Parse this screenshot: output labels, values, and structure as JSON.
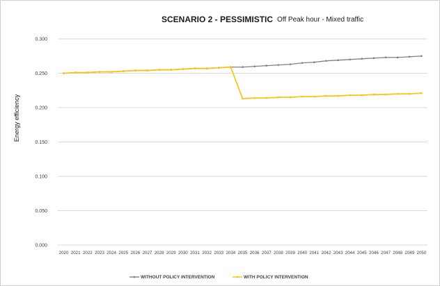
{
  "chart_data": {
    "type": "line",
    "title": "SCENARIO 2 - PESSIMISTIC",
    "subtitle": "Off Peak hour - Mixed traffic",
    "xlabel": "",
    "ylabel": "Energy efficiency",
    "ylim": [
      0,
      0.3
    ],
    "yticks": [
      "0.000",
      "0.050",
      "0.100",
      "0.150",
      "0.200",
      "0.250",
      "0.300"
    ],
    "ytick_values": [
      0,
      0.05,
      0.1,
      0.15,
      0.2,
      0.25,
      0.3
    ],
    "grid": true,
    "legend_position": "bottom",
    "categories": [
      "2020",
      "2021",
      "2022",
      "2023",
      "2024",
      "2025",
      "2026",
      "2027",
      "2028",
      "2029",
      "2030",
      "2031",
      "2032",
      "2033",
      "2034",
      "2035",
      "2036",
      "2037",
      "2038",
      "2039",
      "2040",
      "2041",
      "2042",
      "2043",
      "2044",
      "2045",
      "2046",
      "2047",
      "2048",
      "2049",
      "2050"
    ],
    "series": [
      {
        "name": "WITHOUT POLICY INTERVENTION",
        "color": "#7f7f7f",
        "values": [
          0.25,
          0.251,
          0.251,
          0.252,
          0.252,
          0.253,
          0.254,
          0.254,
          0.255,
          0.255,
          0.256,
          0.257,
          0.257,
          0.258,
          0.259,
          0.259,
          0.26,
          0.261,
          0.262,
          0.263,
          0.265,
          0.266,
          0.268,
          0.269,
          0.27,
          0.271,
          0.272,
          0.273,
          0.273,
          0.274,
          0.275
        ]
      },
      {
        "name": "WITH POLICY INTERVENTION",
        "color": "#ffc000",
        "values": [
          0.25,
          0.251,
          0.251,
          0.252,
          0.252,
          0.253,
          0.254,
          0.254,
          0.255,
          0.255,
          0.256,
          0.257,
          0.257,
          0.258,
          0.259,
          0.213,
          0.214,
          0.214,
          0.215,
          0.215,
          0.216,
          0.216,
          0.217,
          0.217,
          0.218,
          0.218,
          0.219,
          0.219,
          0.22,
          0.22,
          0.221
        ]
      }
    ]
  }
}
